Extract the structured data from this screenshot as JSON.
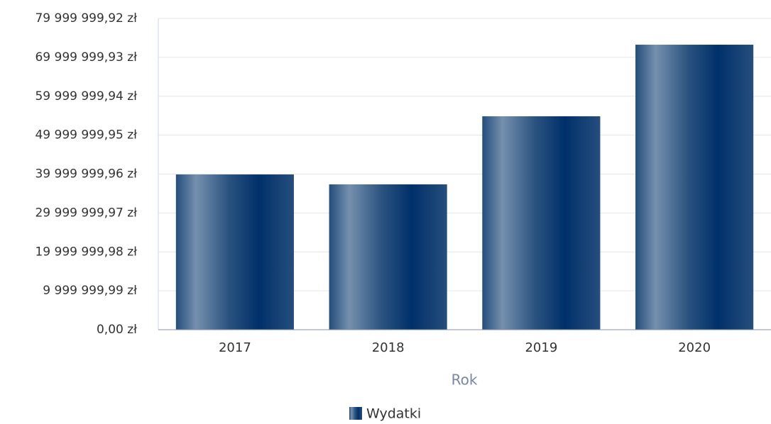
{
  "chart_data": {
    "type": "bar",
    "x_label": "Rok",
    "categories": [
      "2017",
      "2018",
      "2019",
      "2020"
    ],
    "series": [
      {
        "name": "Wydatki",
        "color": "#1d4777",
        "values": [
          39900000,
          37350000,
          54850000,
          73250000
        ]
      }
    ],
    "ylim": [
      0,
      79999999.92
    ],
    "yticks": [
      {
        "value": 0,
        "label": "0,00 zł"
      },
      {
        "value": 9999999.99,
        "label": "9 999 999,99 zł"
      },
      {
        "value": 19999999.98,
        "label": "19 999 999,98 zł"
      },
      {
        "value": 29999999.97,
        "label": "29 999 999,97 zł"
      },
      {
        "value": 39999999.96,
        "label": "39 999 999,96 zł"
      },
      {
        "value": 49999999.95,
        "label": "49 999 999,95 zł"
      },
      {
        "value": 59999999.94,
        "label": "59 999 999,94 zł"
      },
      {
        "value": 69999999.93,
        "label": "69 999 999,93 zł"
      },
      {
        "value": 79999999.92,
        "label": "79 999 999,92 zł"
      }
    ],
    "grid": true,
    "legend": "bottom"
  }
}
